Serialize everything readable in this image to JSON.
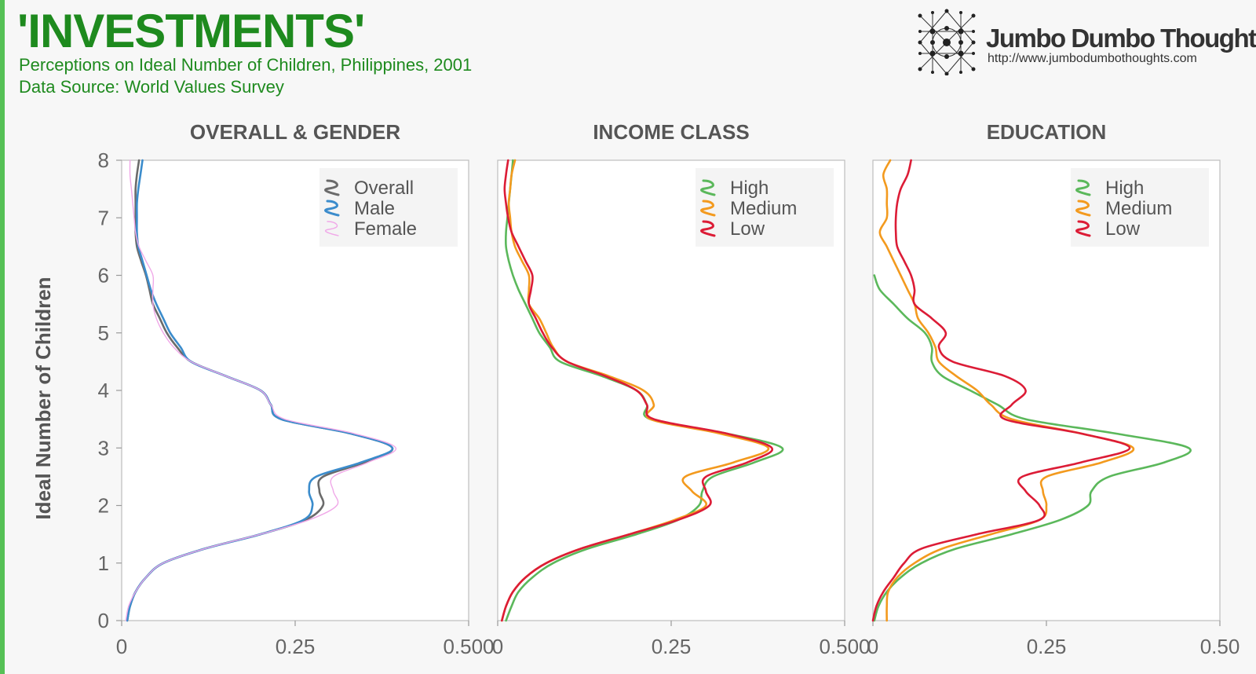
{
  "header": {
    "title": "'INVESTMENTS'",
    "subtitle": "Perceptions on Ideal Number of Children, Philippines, 2001",
    "source": "Data Source: World Values Survey"
  },
  "brand": {
    "name": "Jumbo Dumbo Thoughts",
    "url": "http://www.jumbodumbothoughts.com",
    "logo_icon": "network-dots-icon"
  },
  "colors": {
    "accent": "#56c156",
    "title": "#1e8a1e",
    "overall": "#6b6b6b",
    "male": "#3b8ccc",
    "female": "#f0a8e8",
    "high": "#5bb85b",
    "medium": "#f39a1e",
    "low": "#dc1c36"
  },
  "chart_data": [
    {
      "type": "line",
      "title": "OVERALL & GENDER",
      "xlabel": "",
      "ylabel": "Ideal Number of Children",
      "xlim": [
        0,
        0.5
      ],
      "ylim": [
        0,
        8
      ],
      "x_tick_labels": [
        "0",
        "0.25",
        "0.500"
      ],
      "y_tick_labels": [
        "0",
        "1",
        "2",
        "3",
        "4",
        "5",
        "6",
        "7",
        "8"
      ],
      "orientation": "horizontal-density",
      "legend": "top-right",
      "y": [
        0,
        0.25,
        0.5,
        0.75,
        1,
        1.25,
        1.5,
        1.75,
        2,
        2.25,
        2.5,
        2.75,
        3,
        3.25,
        3.5,
        3.75,
        4,
        4.25,
        4.5,
        4.75,
        5,
        5.25,
        5.5,
        5.75,
        6,
        6.25,
        6.5,
        6.75,
        7,
        7.25,
        7.5,
        7.75,
        8
      ],
      "series": [
        {
          "name": "Overall",
          "color_key": "overall",
          "values": [
            0.008,
            0.012,
            0.02,
            0.035,
            0.06,
            0.12,
            0.2,
            0.265,
            0.29,
            0.285,
            0.29,
            0.35,
            0.39,
            0.33,
            0.23,
            0.215,
            0.2,
            0.15,
            0.1,
            0.08,
            0.065,
            0.055,
            0.045,
            0.04,
            0.035,
            0.028,
            0.022,
            0.02,
            0.02,
            0.02,
            0.02,
            0.022,
            0.025
          ]
        },
        {
          "name": "Male",
          "color_key": "male",
          "values": [
            0.008,
            0.012,
            0.02,
            0.035,
            0.06,
            0.12,
            0.2,
            0.262,
            0.275,
            0.27,
            0.28,
            0.345,
            0.39,
            0.33,
            0.23,
            0.215,
            0.2,
            0.15,
            0.1,
            0.085,
            0.07,
            0.06,
            0.05,
            0.042,
            0.036,
            0.03,
            0.024,
            0.022,
            0.022,
            0.022,
            0.024,
            0.027,
            0.03
          ]
        },
        {
          "name": "Female",
          "color_key": "female",
          "values": [
            0.006,
            0.01,
            0.02,
            0.035,
            0.06,
            0.12,
            0.2,
            0.27,
            0.31,
            0.305,
            0.305,
            0.355,
            0.395,
            0.335,
            0.235,
            0.215,
            0.2,
            0.15,
            0.1,
            0.075,
            0.06,
            0.05,
            0.045,
            0.045,
            0.045,
            0.035,
            0.025,
            0.02,
            0.018,
            0.016,
            0.014,
            0.012,
            0.012
          ]
        }
      ]
    },
    {
      "type": "line",
      "title": "INCOME CLASS",
      "xlabel": "",
      "ylabel": "",
      "xlim": [
        0,
        0.5
      ],
      "ylim": [
        0,
        8
      ],
      "x_tick_labels": [
        "0",
        "0.25",
        "0.500"
      ],
      "y_tick_labels": [],
      "orientation": "horizontal-density",
      "legend": "top-right",
      "y": [
        0,
        0.25,
        0.5,
        0.75,
        1,
        1.25,
        1.5,
        1.75,
        2,
        2.25,
        2.5,
        2.75,
        3,
        3.25,
        3.5,
        3.75,
        4,
        4.25,
        4.5,
        4.75,
        5,
        5.25,
        5.5,
        5.75,
        6,
        6.25,
        6.5,
        6.75,
        7,
        7.25,
        7.5,
        7.75,
        8
      ],
      "series": [
        {
          "name": "High",
          "color_key": "high",
          "values": [
            0.012,
            0.02,
            0.03,
            0.05,
            0.08,
            0.13,
            0.2,
            0.26,
            0.29,
            0.295,
            0.31,
            0.37,
            0.41,
            0.33,
            0.22,
            0.215,
            0.2,
            0.15,
            0.09,
            0.075,
            0.06,
            0.05,
            0.04,
            0.03,
            0.022,
            0.016,
            0.012,
            0.012,
            0.014,
            0.016,
            0.018,
            0.02,
            0.022
          ]
        },
        {
          "name": "Medium",
          "color_key": "medium",
          "values": [
            0.006,
            0.012,
            0.022,
            0.04,
            0.07,
            0.12,
            0.19,
            0.255,
            0.3,
            0.28,
            0.27,
            0.34,
            0.39,
            0.32,
            0.22,
            0.225,
            0.21,
            0.16,
            0.1,
            0.08,
            0.07,
            0.06,
            0.045,
            0.045,
            0.045,
            0.035,
            0.025,
            0.02,
            0.018,
            0.016,
            0.018,
            0.02,
            0.025
          ]
        },
        {
          "name": "Low",
          "color_key": "low",
          "values": [
            0.006,
            0.012,
            0.022,
            0.04,
            0.07,
            0.12,
            0.19,
            0.26,
            0.305,
            0.3,
            0.3,
            0.36,
            0.395,
            0.33,
            0.225,
            0.215,
            0.2,
            0.155,
            0.1,
            0.078,
            0.065,
            0.055,
            0.045,
            0.048,
            0.05,
            0.04,
            0.03,
            0.02,
            0.015,
            0.012,
            0.01,
            0.012,
            0.015
          ]
        }
      ]
    },
    {
      "type": "line",
      "title": "EDUCATION",
      "xlabel": "",
      "ylabel": "",
      "xlim": [
        0,
        0.5
      ],
      "ylim": [
        0,
        8
      ],
      "x_tick_labels": [
        "0",
        "0.25",
        "0.50"
      ],
      "y_tick_labels": [],
      "orientation": "horizontal-density",
      "legend": "top-right",
      "y": [
        0,
        0.25,
        0.5,
        0.75,
        1,
        1.25,
        1.5,
        1.75,
        2,
        2.25,
        2.5,
        2.75,
        3,
        3.25,
        3.5,
        3.75,
        4,
        4.25,
        4.5,
        4.75,
        5,
        5.25,
        5.5,
        5.75,
        6,
        6.25,
        6.5,
        6.75,
        7,
        7.25,
        7.5,
        7.75,
        8
      ],
      "series": [
        {
          "name": "High",
          "color_key": "high",
          "values": [
            0.002,
            0.008,
            0.02,
            0.04,
            0.07,
            0.12,
            0.2,
            0.27,
            0.31,
            0.315,
            0.34,
            0.42,
            0.455,
            0.35,
            0.22,
            0.18,
            0.14,
            0.1,
            0.085,
            0.085,
            0.075,
            0.05,
            0.03,
            0.01,
            0.002,
            null,
            null,
            null,
            null,
            null,
            null,
            null,
            null
          ]
        },
        {
          "name": "Medium",
          "color_key": "medium",
          "values": [
            0.02,
            0.02,
            0.022,
            0.035,
            0.06,
            0.1,
            0.17,
            0.24,
            0.25,
            0.245,
            0.25,
            0.33,
            0.375,
            0.3,
            0.2,
            0.17,
            0.15,
            0.12,
            0.095,
            0.09,
            0.08,
            0.065,
            0.06,
            0.05,
            0.04,
            0.03,
            0.02,
            0.01,
            0.02,
            0.02,
            0.02,
            0.015,
            0.025
          ]
        },
        {
          "name": "Low",
          "color_key": "low",
          "values": [
            0.0,
            0.005,
            0.015,
            0.03,
            0.045,
            0.07,
            0.15,
            0.24,
            0.24,
            0.22,
            0.215,
            0.3,
            0.37,
            0.3,
            0.19,
            0.2,
            0.22,
            0.19,
            0.115,
            0.095,
            0.105,
            0.085,
            0.06,
            0.06,
            0.055,
            0.045,
            0.035,
            0.033,
            0.033,
            0.035,
            0.04,
            0.05,
            0.055
          ]
        }
      ]
    }
  ]
}
